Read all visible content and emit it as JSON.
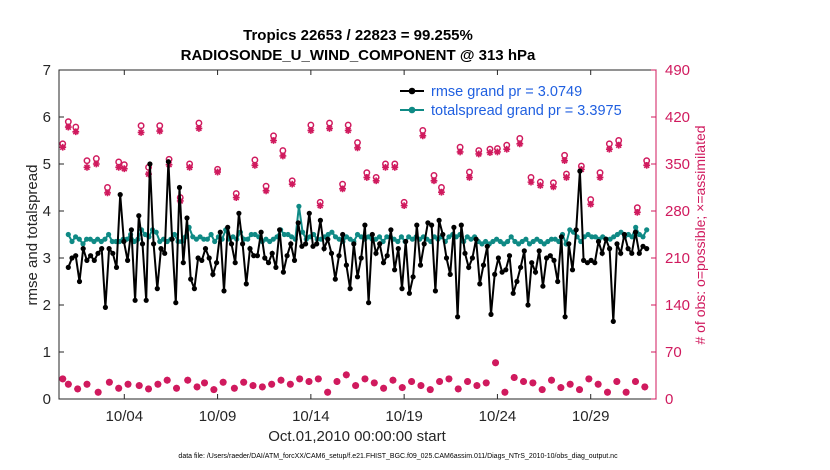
{
  "chart_data": {
    "type": "line",
    "title": "Tropics 22653 / 22823 = 99.255%",
    "subtitle": "RADIOSONDE_U_WIND_COMPONENT @ 313 hPa",
    "xlabel": "Oct.01,2010 00:00:00 start",
    "ylabel": "rmse and totalspread",
    "ylabel_right": "# of obs: o=possible; ×=assimilated",
    "footer": "data file: /Users/raeder/DAI/ATM_forcXX/CAM6_setup/f.e21.FHIST_BGC.f09_025.CAM6assim.011/Diags_NTrS_2010-10/obs_diag_output.nc",
    "xlim": [
      0.5,
      32.5
    ],
    "ylim": [
      0,
      7
    ],
    "ylim_right": [
      0,
      490
    ],
    "xticks": [
      4,
      9,
      14,
      19,
      24,
      29
    ],
    "xtick_labels": [
      "10/04",
      "10/09",
      "10/14",
      "10/19",
      "10/24",
      "10/29"
    ],
    "yticks": [
      0,
      1,
      2,
      3,
      4,
      5,
      6,
      7
    ],
    "yticks_right": [
      0,
      70,
      140,
      210,
      280,
      350,
      420,
      490
    ],
    "legend_position": "top-right",
    "colors": {
      "rmse": "#000000",
      "spread": "#0f8a85",
      "obs": "#d01a5e",
      "legend_text": "#1f5fe0"
    },
    "series": [
      {
        "name": "rmse grand pr = 3.0749",
        "values": [
          2.8,
          3.0,
          3.05,
          2.5,
          3.2,
          2.95,
          3.05,
          2.95,
          3.1,
          3.2,
          1.95,
          3.2,
          3.1,
          2.8,
          4.35,
          3.35,
          2.95,
          3.6,
          2.1,
          3.9,
          3.3,
          2.1,
          5.0,
          3.3,
          2.35,
          3.2,
          3.1,
          5.05,
          3.4,
          2.05,
          4.5,
          2.9,
          3.85,
          2.55,
          2.35,
          3.0,
          2.95,
          3.2,
          3.0,
          2.65,
          2.9,
          3.55,
          2.3,
          3.65,
          3.3,
          2.9,
          3.95,
          3.3,
          2.45,
          3.2,
          3.05,
          3.05,
          3.55,
          3.0,
          2.9,
          3.1,
          2.8,
          3.6,
          2.7,
          3.05,
          3.3,
          2.95,
          3.75,
          3.25,
          3.3,
          3.95,
          3.25,
          3.3,
          3.8,
          3.2,
          3.4,
          3.1,
          2.55,
          3.05,
          3.5,
          2.85,
          2.35,
          3.3,
          2.6,
          3.0,
          3.7,
          2.05,
          3.5,
          3.1,
          3.3,
          2.9,
          3.05,
          3.6,
          2.75,
          3.2,
          2.35,
          3.35,
          2.25,
          2.6,
          3.7,
          2.85,
          3.3,
          3.75,
          3.7,
          2.3,
          3.8,
          3.5,
          3.0,
          2.65,
          3.65,
          1.75,
          3.7,
          3.1,
          2.8,
          3.0,
          3.4,
          2.45,
          2.85,
          3.25,
          1.8,
          2.65,
          3.0,
          2.7,
          2.75,
          3.05,
          2.25,
          2.5,
          2.8,
          3.15,
          2.0,
          2.9,
          2.7,
          3.15,
          2.4,
          3.0,
          3.05,
          2.95,
          2.5,
          3.45,
          1.75,
          3.3,
          2.75,
          3.6,
          4.85,
          2.95,
          2.9,
          2.95,
          2.9,
          3.35,
          3.1,
          3.4,
          3.2,
          1.65,
          3.3,
          3.1,
          3.5,
          3.2,
          3.1,
          3.55,
          3.1,
          3.25,
          3.2
        ]
      },
      {
        "name": "totalspread grand pr = 3.3975",
        "values": [
          3.5,
          3.35,
          3.45,
          3.4,
          3.3,
          3.4,
          3.4,
          3.35,
          3.4,
          3.35,
          3.4,
          3.5,
          3.35,
          3.35,
          3.35,
          3.4,
          3.4,
          3.5,
          3.35,
          3.4,
          3.6,
          3.5,
          3.45,
          3.6,
          3.55,
          3.35,
          3.4,
          3.35,
          3.4,
          3.5,
          3.35,
          3.35,
          3.45,
          3.65,
          3.45,
          3.4,
          3.45,
          3.4,
          3.4,
          3.5,
          3.35,
          3.45,
          3.4,
          3.6,
          3.4,
          3.45,
          3.4,
          3.55,
          3.4,
          3.4,
          3.5,
          3.5,
          3.45,
          3.35,
          3.4,
          3.35,
          3.4,
          3.45,
          3.6,
          3.5,
          3.5,
          3.45,
          3.4,
          4.1,
          3.55,
          3.4,
          3.45,
          3.5,
          3.4,
          3.4,
          3.45,
          3.5,
          3.55,
          3.45,
          3.4,
          3.35,
          3.45,
          3.4,
          3.35,
          3.5,
          3.45,
          3.4,
          3.45,
          3.4,
          3.4,
          3.45,
          3.35,
          3.45,
          3.45,
          3.4,
          3.35,
          3.45,
          3.35,
          3.45,
          3.4,
          3.45,
          3.4,
          3.45,
          3.4,
          3.35,
          3.45,
          3.4,
          3.45,
          3.35,
          3.45,
          3.5,
          3.45,
          3.5,
          3.35,
          3.45,
          3.4,
          3.45,
          3.35,
          3.3,
          3.35,
          3.3,
          3.35,
          3.4,
          3.35,
          3.3,
          3.35,
          3.45,
          3.35,
          3.3,
          3.35,
          3.4,
          3.3,
          3.35,
          3.4,
          3.35,
          3.3,
          3.35,
          3.4,
          3.4,
          3.35,
          3.5,
          3.3,
          3.6,
          3.55,
          3.45,
          3.35,
          3.45,
          3.5,
          3.45,
          3.45,
          3.4,
          3.45,
          3.4,
          3.4,
          3.45,
          3.5,
          3.55,
          3.45,
          3.5,
          3.45,
          3.65,
          3.5,
          3.45,
          3.6
        ]
      }
    ],
    "obs_possible_high": [
      [
        0.7,
        380
      ],
      [
        1.0,
        413
      ],
      [
        1.4,
        405
      ],
      [
        2.0,
        355
      ],
      [
        2.5,
        358
      ],
      [
        3.1,
        315
      ],
      [
        3.7,
        353
      ],
      [
        4.0,
        349
      ],
      [
        4.9,
        407
      ],
      [
        5.3,
        345
      ],
      [
        5.9,
        407
      ],
      [
        6.4,
        357
      ],
      [
        7.0,
        300
      ],
      [
        7.5,
        350
      ],
      [
        8.0,
        411
      ],
      [
        9.0,
        342
      ],
      [
        10.0,
        306
      ],
      [
        11.0,
        356
      ],
      [
        11.6,
        317
      ],
      [
        12.0,
        392
      ],
      [
        12.5,
        370
      ],
      [
        13.0,
        325
      ],
      [
        14.0,
        408
      ],
      [
        14.5,
        293
      ],
      [
        15.0,
        411
      ],
      [
        15.7,
        320
      ],
      [
        16.0,
        408
      ],
      [
        16.5,
        382
      ],
      [
        17.0,
        337
      ],
      [
        17.5,
        330
      ],
      [
        18.0,
        350
      ],
      [
        18.5,
        350
      ],
      [
        19.0,
        293
      ],
      [
        20.0,
        400
      ],
      [
        20.6,
        333
      ],
      [
        21.0,
        315
      ],
      [
        22.0,
        375
      ],
      [
        22.5,
        338
      ],
      [
        23.0,
        370
      ],
      [
        23.6,
        372
      ],
      [
        24.0,
        373
      ],
      [
        24.5,
        378
      ],
      [
        25.2,
        388
      ],
      [
        25.8,
        330
      ],
      [
        26.3,
        323
      ],
      [
        27.0,
        322
      ],
      [
        27.7,
        335
      ],
      [
        27.6,
        363
      ],
      [
        28.5,
        347
      ],
      [
        29.0,
        297
      ],
      [
        29.5,
        337
      ],
      [
        30.0,
        380
      ],
      [
        30.5,
        385
      ],
      [
        31.5,
        285
      ],
      [
        32.0,
        355
      ]
    ],
    "obs_assimilated_high": [
      [
        0.7,
        375
      ],
      [
        1.0,
        405
      ],
      [
        1.4,
        398
      ],
      [
        2.0,
        345
      ],
      [
        2.5,
        350
      ],
      [
        3.1,
        307
      ],
      [
        3.7,
        345
      ],
      [
        4.0,
        343
      ],
      [
        4.9,
        397
      ],
      [
        5.3,
        335
      ],
      [
        5.9,
        399
      ],
      [
        6.4,
        349
      ],
      [
        7.0,
        295
      ],
      [
        7.5,
        345
      ],
      [
        8.0,
        403
      ],
      [
        9.0,
        338
      ],
      [
        10.0,
        300
      ],
      [
        11.0,
        348
      ],
      [
        11.6,
        310
      ],
      [
        12.0,
        385
      ],
      [
        12.5,
        362
      ],
      [
        13.0,
        320
      ],
      [
        14.0,
        400
      ],
      [
        14.5,
        288
      ],
      [
        15.0,
        403
      ],
      [
        15.7,
        313
      ],
      [
        16.0,
        400
      ],
      [
        16.5,
        374
      ],
      [
        17.0,
        330
      ],
      [
        17.5,
        325
      ],
      [
        18.0,
        345
      ],
      [
        18.5,
        345
      ],
      [
        19.0,
        288
      ],
      [
        20.0,
        392
      ],
      [
        20.6,
        325
      ],
      [
        21.0,
        308
      ],
      [
        22.0,
        368
      ],
      [
        22.5,
        330
      ],
      [
        23.0,
        365
      ],
      [
        23.6,
        367
      ],
      [
        24.0,
        368
      ],
      [
        24.5,
        372
      ],
      [
        25.2,
        380
      ],
      [
        25.8,
        323
      ],
      [
        26.3,
        318
      ],
      [
        27.0,
        316
      ],
      [
        27.7,
        330
      ],
      [
        27.6,
        355
      ],
      [
        28.5,
        342
      ],
      [
        29.0,
        290
      ],
      [
        29.5,
        330
      ],
      [
        30.0,
        372
      ],
      [
        30.5,
        378
      ],
      [
        31.5,
        278
      ],
      [
        32.0,
        348
      ]
    ],
    "obs_possible_low": [
      [
        0.7,
        30
      ],
      [
        1.0,
        22
      ],
      [
        1.5,
        15
      ],
      [
        2.0,
        22
      ],
      [
        2.6,
        10
      ],
      [
        3.2,
        25
      ],
      [
        3.7,
        16
      ],
      [
        4.2,
        22
      ],
      [
        4.8,
        20
      ],
      [
        5.3,
        15
      ],
      [
        5.8,
        22
      ],
      [
        6.3,
        28
      ],
      [
        6.8,
        16
      ],
      [
        7.4,
        28
      ],
      [
        7.9,
        18
      ],
      [
        8.3,
        24
      ],
      [
        8.8,
        14
      ],
      [
        9.3,
        25
      ],
      [
        9.9,
        16
      ],
      [
        10.4,
        25
      ],
      [
        10.9,
        20
      ],
      [
        11.4,
        18
      ],
      [
        11.9,
        22
      ],
      [
        12.4,
        28
      ],
      [
        12.9,
        22
      ],
      [
        13.4,
        30
      ],
      [
        13.9,
        26
      ],
      [
        14.4,
        30
      ],
      [
        14.9,
        10
      ],
      [
        15.4,
        26
      ],
      [
        15.9,
        36
      ],
      [
        16.4,
        20
      ],
      [
        16.9,
        30
      ],
      [
        17.4,
        24
      ],
      [
        17.9,
        16
      ],
      [
        18.4,
        28
      ],
      [
        18.9,
        17
      ],
      [
        19.4,
        26
      ],
      [
        19.9,
        20
      ],
      [
        20.4,
        14
      ],
      [
        20.9,
        26
      ],
      [
        21.4,
        30
      ],
      [
        21.9,
        15
      ],
      [
        22.4,
        26
      ],
      [
        22.9,
        20
      ],
      [
        23.4,
        24
      ],
      [
        23.9,
        54
      ],
      [
        24.4,
        10
      ],
      [
        24.9,
        32
      ],
      [
        25.4,
        26
      ],
      [
        25.9,
        24
      ],
      [
        26.4,
        14
      ],
      [
        26.9,
        28
      ],
      [
        27.4,
        17
      ],
      [
        27.9,
        22
      ],
      [
        28.4,
        14
      ],
      [
        28.9,
        30
      ],
      [
        29.4,
        22
      ],
      [
        29.9,
        10
      ],
      [
        30.4,
        26
      ],
      [
        30.9,
        10
      ],
      [
        31.4,
        26
      ],
      [
        31.9,
        18
      ]
    ]
  }
}
